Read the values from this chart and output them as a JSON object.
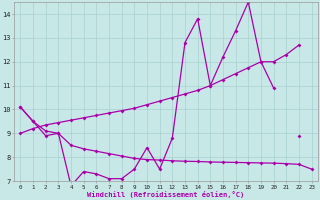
{
  "bg_color": "#c8e8e8",
  "grid_color": "#a8d0d0",
  "line_color": "#aa00aa",
  "xlabel": "Windchill (Refroidissement éolien,°C)",
  "x": [
    0,
    1,
    2,
    3,
    4,
    5,
    6,
    7,
    8,
    9,
    10,
    11,
    12,
    13,
    14,
    15,
    16,
    17,
    18,
    19,
    20,
    21,
    22,
    23
  ],
  "ya": [
    10.1,
    9.5,
    8.9,
    9.0,
    6.8,
    7.4,
    7.3,
    7.1,
    7.1,
    7.5,
    8.4,
    7.5,
    8.8,
    12.8,
    13.8,
    11.0,
    12.2,
    13.3,
    14.5,
    12.0,
    10.9,
    null,
    8.9,
    null
  ],
  "yb": [
    9.0,
    9.2,
    9.35,
    9.45,
    9.55,
    9.65,
    9.75,
    9.85,
    9.95,
    10.05,
    10.2,
    10.35,
    10.5,
    10.65,
    10.8,
    11.0,
    11.25,
    11.5,
    11.75,
    12.0,
    12.0,
    12.3,
    12.7,
    null
  ],
  "yc": [
    10.1,
    9.5,
    9.1,
    9.0,
    8.5,
    8.35,
    8.25,
    8.15,
    8.05,
    7.95,
    7.9,
    7.88,
    7.85,
    7.83,
    7.82,
    7.8,
    7.79,
    7.78,
    7.77,
    7.76,
    7.75,
    7.73,
    7.7,
    7.5
  ],
  "ylim": [
    7,
    14.5
  ],
  "yticks": [
    7,
    8,
    9,
    10,
    11,
    12,
    13,
    14
  ],
  "xlim_min": -0.5,
  "xlim_max": 23.5
}
